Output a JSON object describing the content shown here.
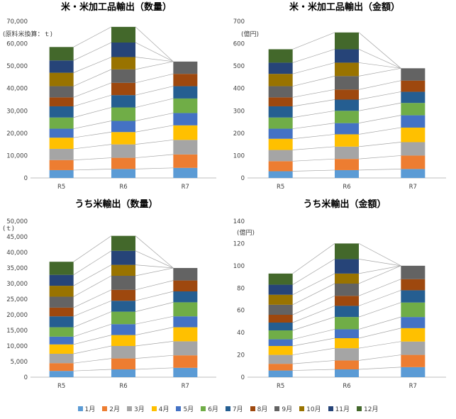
{
  "colors": {
    "1月": "#5B9BD5",
    "2月": "#ED7D31",
    "3月": "#A5A5A5",
    "4月": "#FFC000",
    "5月": "#4472C4",
    "6月": "#70AD47",
    "7月": "#255E91",
    "8月": "#9E480E",
    "9月": "#636363",
    "10月": "#997300",
    "11月": "#264478",
    "12月": "#43682B"
  },
  "legend": [
    "1月",
    "2月",
    "3月",
    "4月",
    "5月",
    "6月",
    "7月",
    "8月",
    "9月",
    "10月",
    "11月",
    "12月"
  ],
  "chart_data": [
    {
      "type": "bar",
      "stacked": true,
      "title": "米・米加工品輸出（数量）",
      "unit_label": "(原料米換算：ｔ)",
      "categories": [
        "R5",
        "R6",
        "R7"
      ],
      "ylim": [
        0,
        70000
      ],
      "yticks": [
        "0",
        "10,000",
        "20,000",
        "30,000",
        "40,000",
        "50,000",
        "60,000",
        "70,000"
      ],
      "series": [
        {
          "name": "1月",
          "values": [
            3500,
            4000,
            4500
          ]
        },
        {
          "name": "2月",
          "values": [
            4500,
            5000,
            6000
          ]
        },
        {
          "name": "3月",
          "values": [
            5000,
            6000,
            6500
          ]
        },
        {
          "name": "4月",
          "values": [
            5000,
            5500,
            6500
          ]
        },
        {
          "name": "5月",
          "values": [
            4000,
            5000,
            5500
          ]
        },
        {
          "name": "6月",
          "values": [
            5000,
            6000,
            6500
          ]
        },
        {
          "name": "7月",
          "values": [
            5000,
            5500,
            5500
          ]
        },
        {
          "name": "8月",
          "values": [
            4000,
            5500,
            5500
          ]
        },
        {
          "name": "9月",
          "values": [
            5000,
            6000,
            5500
          ]
        },
        {
          "name": "10月",
          "values": [
            6000,
            5500,
            0
          ]
        },
        {
          "name": "11月",
          "values": [
            5500,
            6500,
            0
          ]
        },
        {
          "name": "12月",
          "values": [
            6000,
            7000,
            0
          ]
        }
      ],
      "x_labels": [
        "R5",
        "R6",
        "R7"
      ]
    },
    {
      "type": "bar",
      "stacked": true,
      "title": "米・米加工品輸出（金額）",
      "unit_label": "(億円)",
      "categories": [
        "R5",
        "R6",
        "R7"
      ],
      "ylim": [
        0,
        700
      ],
      "yticks": [
        "0",
        "100",
        "200",
        "300",
        "400",
        "500",
        "600",
        "700"
      ],
      "series": [
        {
          "name": "1月",
          "values": [
            30,
            35,
            40
          ]
        },
        {
          "name": "2月",
          "values": [
            45,
            50,
            60
          ]
        },
        {
          "name": "3月",
          "values": [
            50,
            55,
            60
          ]
        },
        {
          "name": "4月",
          "values": [
            50,
            55,
            65
          ]
        },
        {
          "name": "5月",
          "values": [
            45,
            50,
            55
          ]
        },
        {
          "name": "6月",
          "values": [
            50,
            55,
            55
          ]
        },
        {
          "name": "7月",
          "values": [
            50,
            50,
            50
          ]
        },
        {
          "name": "8月",
          "values": [
            40,
            45,
            50
          ]
        },
        {
          "name": "9月",
          "values": [
            50,
            60,
            55
          ]
        },
        {
          "name": "10月",
          "values": [
            55,
            60,
            0
          ]
        },
        {
          "name": "11月",
          "values": [
            50,
            60,
            0
          ]
        },
        {
          "name": "12月",
          "values": [
            60,
            75,
            0
          ]
        }
      ],
      "x_labels": [
        "R5",
        "R6",
        "R7"
      ]
    },
    {
      "type": "bar",
      "stacked": true,
      "title": "うち米輸出（数量）",
      "unit_label": "(ｔ)",
      "categories": [
        "R5",
        "R6",
        "R7"
      ],
      "ylim": [
        0,
        50000
      ],
      "yticks": [
        "0",
        "5,000",
        "10,000",
        "15,000",
        "20,000",
        "25,000",
        "30,000",
        "35,000",
        "40,000",
        "45,000",
        "50,000"
      ],
      "series": [
        {
          "name": "1月",
          "values": [
            2000,
            2500,
            3000
          ]
        },
        {
          "name": "2月",
          "values": [
            2500,
            3500,
            4000
          ]
        },
        {
          "name": "3月",
          "values": [
            3000,
            4000,
            4500
          ]
        },
        {
          "name": "4月",
          "values": [
            3000,
            3500,
            4500
          ]
        },
        {
          "name": "5月",
          "values": [
            2500,
            3500,
            3500
          ]
        },
        {
          "name": "6月",
          "values": [
            3000,
            4000,
            4500
          ]
        },
        {
          "name": "7月",
          "values": [
            3500,
            3500,
            3500
          ]
        },
        {
          "name": "8月",
          "values": [
            2800,
            3500,
            3500
          ]
        },
        {
          "name": "9月",
          "values": [
            3500,
            4500,
            4000
          ]
        },
        {
          "name": "10月",
          "values": [
            3500,
            3500,
            0
          ]
        },
        {
          "name": "11月",
          "values": [
            3500,
            4500,
            0
          ]
        },
        {
          "name": "12月",
          "values": [
            4200,
            4800,
            0
          ]
        }
      ],
      "x_labels": [
        "R5",
        "R6",
        "R7"
      ]
    },
    {
      "type": "bar",
      "stacked": true,
      "title": "うち米輸出（金額）",
      "unit_label": "(億円)",
      "categories": [
        "R5",
        "R6",
        "R7"
      ],
      "ylim": [
        0,
        140
      ],
      "yticks": [
        "0",
        "20",
        "40",
        "60",
        "80",
        "100",
        "120",
        "140"
      ],
      "series": [
        {
          "name": "1月",
          "values": [
            6,
            7,
            9
          ]
        },
        {
          "name": "2月",
          "values": [
            6,
            8,
            11
          ]
        },
        {
          "name": "3月",
          "values": [
            8,
            11,
            12
          ]
        },
        {
          "name": "4月",
          "values": [
            8,
            9,
            12
          ]
        },
        {
          "name": "5月",
          "values": [
            6,
            8,
            10
          ]
        },
        {
          "name": "6月",
          "values": [
            8,
            11,
            13
          ]
        },
        {
          "name": "7月",
          "values": [
            7,
            10,
            11
          ]
        },
        {
          "name": "8月",
          "values": [
            7,
            9,
            10
          ]
        },
        {
          "name": "9月",
          "values": [
            9,
            11,
            12
          ]
        },
        {
          "name": "10月",
          "values": [
            9,
            9,
            0
          ]
        },
        {
          "name": "11月",
          "values": [
            9,
            13,
            0
          ]
        },
        {
          "name": "12月",
          "values": [
            10,
            14,
            0
          ]
        }
      ],
      "x_labels": [
        "R5",
        "R6",
        "R7"
      ]
    }
  ]
}
